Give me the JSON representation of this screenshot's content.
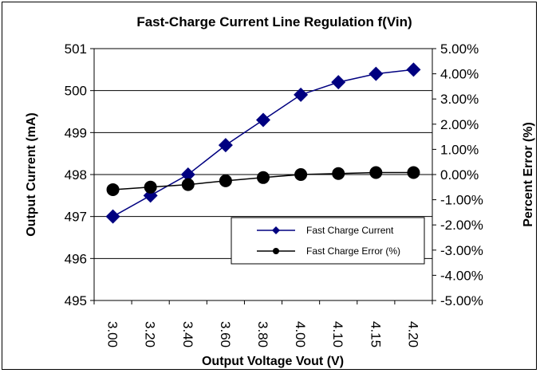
{
  "chart_data": {
    "type": "line",
    "title": "Fast-Charge Current Line Regulation f(Vin)",
    "xlabel": "Output Voltage Vout (V)",
    "ylabel": "Output Current (mA)",
    "y2label": "Percent Error (%)",
    "categories": [
      "3.00",
      "3.20",
      "3.40",
      "3.60",
      "3.80",
      "4.00",
      "4.10",
      "4.15",
      "4.20"
    ],
    "ylim": [
      495,
      501
    ],
    "y_ticks": [
      "495",
      "496",
      "497",
      "498",
      "499",
      "500",
      "501"
    ],
    "y2lim": [
      -5.0,
      5.0
    ],
    "y2_ticks": [
      "-5.00%",
      "-4.00%",
      "-3.00%",
      "-2.00%",
      "-1.00%",
      "0.00%",
      "1.00%",
      "2.00%",
      "3.00%",
      "4.00%",
      "5.00%"
    ],
    "grid": "horizontal",
    "legend_position": "bottom-right",
    "series": [
      {
        "name": "Fast Charge Current",
        "axis": "left",
        "marker": "diamond",
        "color": "#000080",
        "values": [
          497.0,
          497.5,
          498.0,
          498.7,
          499.3,
          499.9,
          500.2,
          500.4,
          500.5
        ]
      },
      {
        "name": "Fast Charge Error (%)",
        "axis": "right",
        "marker": "circle",
        "color": "#000000",
        "values": [
          -0.6,
          -0.5,
          -0.4,
          -0.25,
          -0.12,
          0.0,
          0.04,
          0.08,
          0.08
        ]
      }
    ]
  }
}
